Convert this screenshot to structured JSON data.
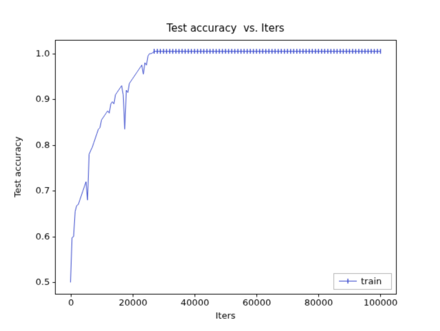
{
  "chart_data": {
    "type": "line",
    "title": "Test accuracy  vs. Iters",
    "xlabel": "Iters",
    "ylabel": "Test accuracy",
    "xlim": [
      -5000,
      105000
    ],
    "ylim": [
      0.475,
      1.03
    ],
    "x_ticks": [
      0,
      20000,
      40000,
      60000,
      80000,
      100000
    ],
    "y_ticks": [
      0.5,
      0.6,
      0.7,
      0.8,
      0.9,
      1.0
    ],
    "grid": false,
    "legend_position": "lower right",
    "line_color": "#3344cc",
    "marker": "|",
    "series": [
      {
        "name": "train",
        "x": [
          0,
          500,
          1000,
          1500,
          2000,
          2500,
          3000,
          3500,
          4000,
          4500,
          5000,
          5500,
          6000,
          6500,
          7000,
          7500,
          8000,
          8500,
          9000,
          9500,
          10000,
          10500,
          11000,
          11500,
          12000,
          12500,
          13000,
          13500,
          14000,
          14500,
          15000,
          15500,
          16000,
          16500,
          17000,
          17500,
          18000,
          18500,
          19000,
          19500,
          20000,
          20500,
          21000,
          21500,
          22000,
          22500,
          23000,
          23500,
          24000,
          24500,
          25000,
          25500,
          26000,
          26500,
          27000
        ],
        "y": [
          0.5,
          0.598,
          0.6,
          0.655,
          0.668,
          0.67,
          0.68,
          0.69,
          0.7,
          0.71,
          0.72,
          0.68,
          0.78,
          0.788,
          0.795,
          0.805,
          0.815,
          0.825,
          0.835,
          0.838,
          0.855,
          0.86,
          0.865,
          0.87,
          0.875,
          0.87,
          0.89,
          0.895,
          0.89,
          0.91,
          0.915,
          0.92,
          0.925,
          0.93,
          0.91,
          0.835,
          0.92,
          0.915,
          0.935,
          0.94,
          0.945,
          0.95,
          0.955,
          0.96,
          0.965,
          0.97,
          0.975,
          0.955,
          0.98,
          0.975,
          0.995,
          1.0,
          1.0,
          1.002,
          1.005
        ],
        "flat_tail": {
          "x_start": 28000,
          "x_end": 100000,
          "step": 1000,
          "value": 1.005
        }
      }
    ]
  }
}
